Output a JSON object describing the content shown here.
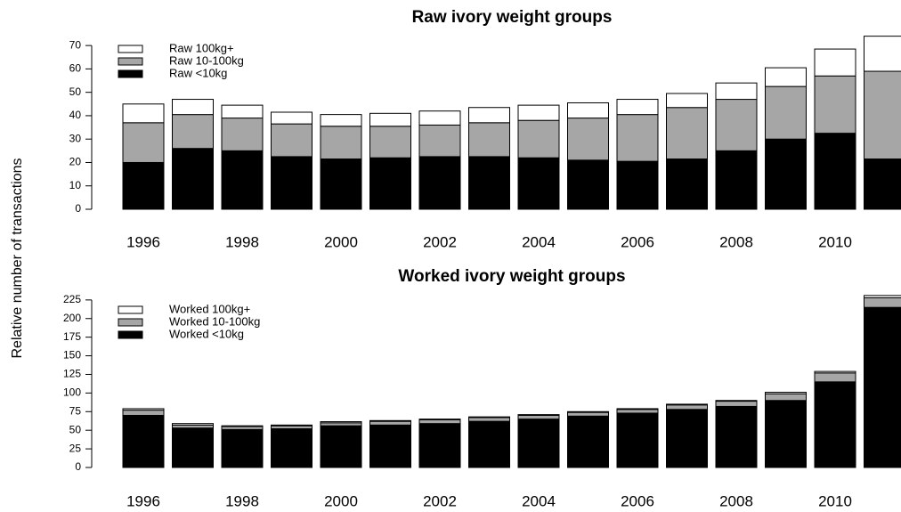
{
  "chart_data": [
    {
      "type": "stacked-bar",
      "title": "Raw ivory weight groups",
      "ylabel": "Relative number of transactions",
      "categories": [
        "1996",
        null,
        "1998",
        null,
        "2000",
        null,
        "2002",
        null,
        "2004",
        null,
        "2006",
        null,
        "2008",
        null,
        "2010",
        null
      ],
      "series": [
        {
          "name": "Raw <10kg",
          "color": "#000000",
          "values": [
            20,
            26,
            25,
            22.5,
            21.5,
            22,
            22.5,
            22.5,
            22,
            21,
            20.5,
            21.5,
            25,
            30,
            32.5,
            21.5
          ]
        },
        {
          "name": "Raw 10-100kg",
          "color": "#a6a6a6",
          "values": [
            17,
            14.5,
            14,
            14,
            14,
            13.5,
            13.5,
            14.5,
            16,
            18,
            20,
            22,
            22,
            22.5,
            24.5,
            37.5
          ]
        },
        {
          "name": "Raw 100kg+",
          "color": "#ffffff",
          "values": [
            8,
            6.5,
            5.5,
            5,
            5,
            5.5,
            6,
            6.5,
            6.5,
            6.5,
            6.5,
            6,
            7,
            8,
            11.5,
            15
          ]
        }
      ],
      "ylim": [
        0,
        75
      ],
      "yticks": [
        0,
        10,
        20,
        30,
        40,
        50,
        60,
        70
      ],
      "legend": "top-left"
    },
    {
      "type": "stacked-bar",
      "title": "Worked ivory weight groups",
      "categories": [
        "1996",
        null,
        "1998",
        null,
        "2000",
        null,
        "2002",
        null,
        "2004",
        null,
        "2006",
        null,
        "2008",
        null,
        "2010",
        null
      ],
      "series": [
        {
          "name": "Worked <10kg",
          "color": "#000000",
          "values": [
            70,
            53,
            51,
            52,
            56,
            57,
            59,
            62,
            65,
            69,
            73,
            78,
            82,
            90,
            115,
            215
          ]
        },
        {
          "name": "Worked 10-100kg",
          "color": "#a6a6a6",
          "values": [
            7,
            4,
            4,
            4,
            4,
            5,
            5,
            5,
            5,
            5,
            5,
            6,
            7,
            9,
            12,
            13
          ]
        },
        {
          "name": "Worked 100kg+",
          "color": "#ffffff",
          "values": [
            2,
            2,
            1,
            1,
            1.5,
            1,
            1,
            1,
            1,
            1,
            1,
            1,
            1,
            2,
            2,
            3
          ]
        }
      ],
      "ylim": [
        0,
        232
      ],
      "yticks": [
        0,
        25,
        50,
        75,
        100,
        125,
        150,
        175,
        200,
        225
      ],
      "legend": "top-left"
    }
  ]
}
